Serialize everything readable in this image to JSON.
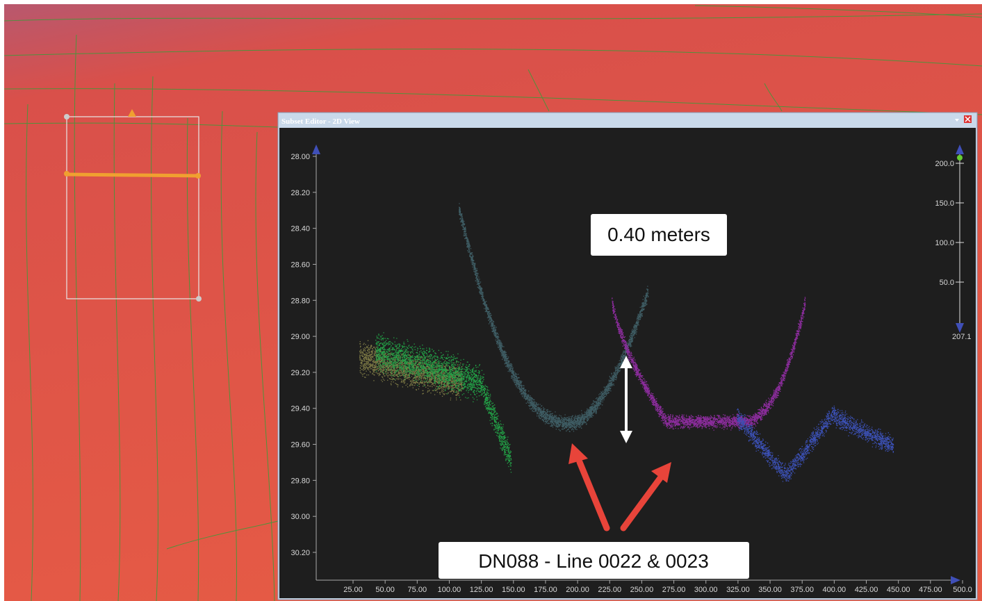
{
  "window": {
    "title": "Subset Editor - 2D View",
    "y_axis": {
      "ticks": [
        {
          "value": 28,
          "label": "28.00"
        },
        {
          "value": 28.2,
          "label": "28.20"
        },
        {
          "value": 28.4,
          "label": "28.40"
        },
        {
          "value": 28.6,
          "label": "28.60"
        },
        {
          "value": 28.8,
          "label": "28.80"
        },
        {
          "value": 29,
          "label": "29.00"
        },
        {
          "value": 29.2,
          "label": "29.20"
        },
        {
          "value": 29.4,
          "label": "29.40"
        },
        {
          "value": 29.6,
          "label": "29.60"
        },
        {
          "value": 29.8,
          "label": "29.80"
        },
        {
          "value": 30,
          "label": "30.00"
        },
        {
          "value": 30.2,
          "label": "30.20"
        }
      ]
    },
    "x_axis": {
      "ticks": [
        {
          "value": 25,
          "label": "25.00"
        },
        {
          "value": 50,
          "label": "50.00"
        },
        {
          "value": 75,
          "label": "75.00"
        },
        {
          "value": 100,
          "label": "100.00"
        },
        {
          "value": 125,
          "label": "125.00"
        },
        {
          "value": 150,
          "label": "150.00"
        },
        {
          "value": 175,
          "label": "175.00"
        },
        {
          "value": 200,
          "label": "200.00"
        },
        {
          "value": 225,
          "label": "225.00"
        },
        {
          "value": 250,
          "label": "250.00"
        },
        {
          "value": 275,
          "label": "275.00"
        },
        {
          "value": 300,
          "label": "300.00"
        },
        {
          "value": 325,
          "label": "325.00"
        },
        {
          "value": 350,
          "label": "350.00"
        },
        {
          "value": 375,
          "label": "375.00"
        },
        {
          "value": 400,
          "label": "400.00"
        },
        {
          "value": 425,
          "label": "425.00"
        },
        {
          "value": 450,
          "label": "450.00"
        },
        {
          "value": 475,
          "label": "475.00"
        },
        {
          "value": 500,
          "label": "500.0"
        }
      ]
    },
    "side_scale": {
      "ticks": [
        {
          "value": 200,
          "label": "200.0"
        },
        {
          "value": 150,
          "label": "150.0"
        },
        {
          "value": 100,
          "label": "100.0"
        },
        {
          "value": 50,
          "label": "50.0"
        }
      ],
      "end_label": "207.1"
    }
  },
  "annotations": {
    "measurement": "0.40 meters",
    "caption": "DN088 - Line 0022 & 0023"
  }
}
